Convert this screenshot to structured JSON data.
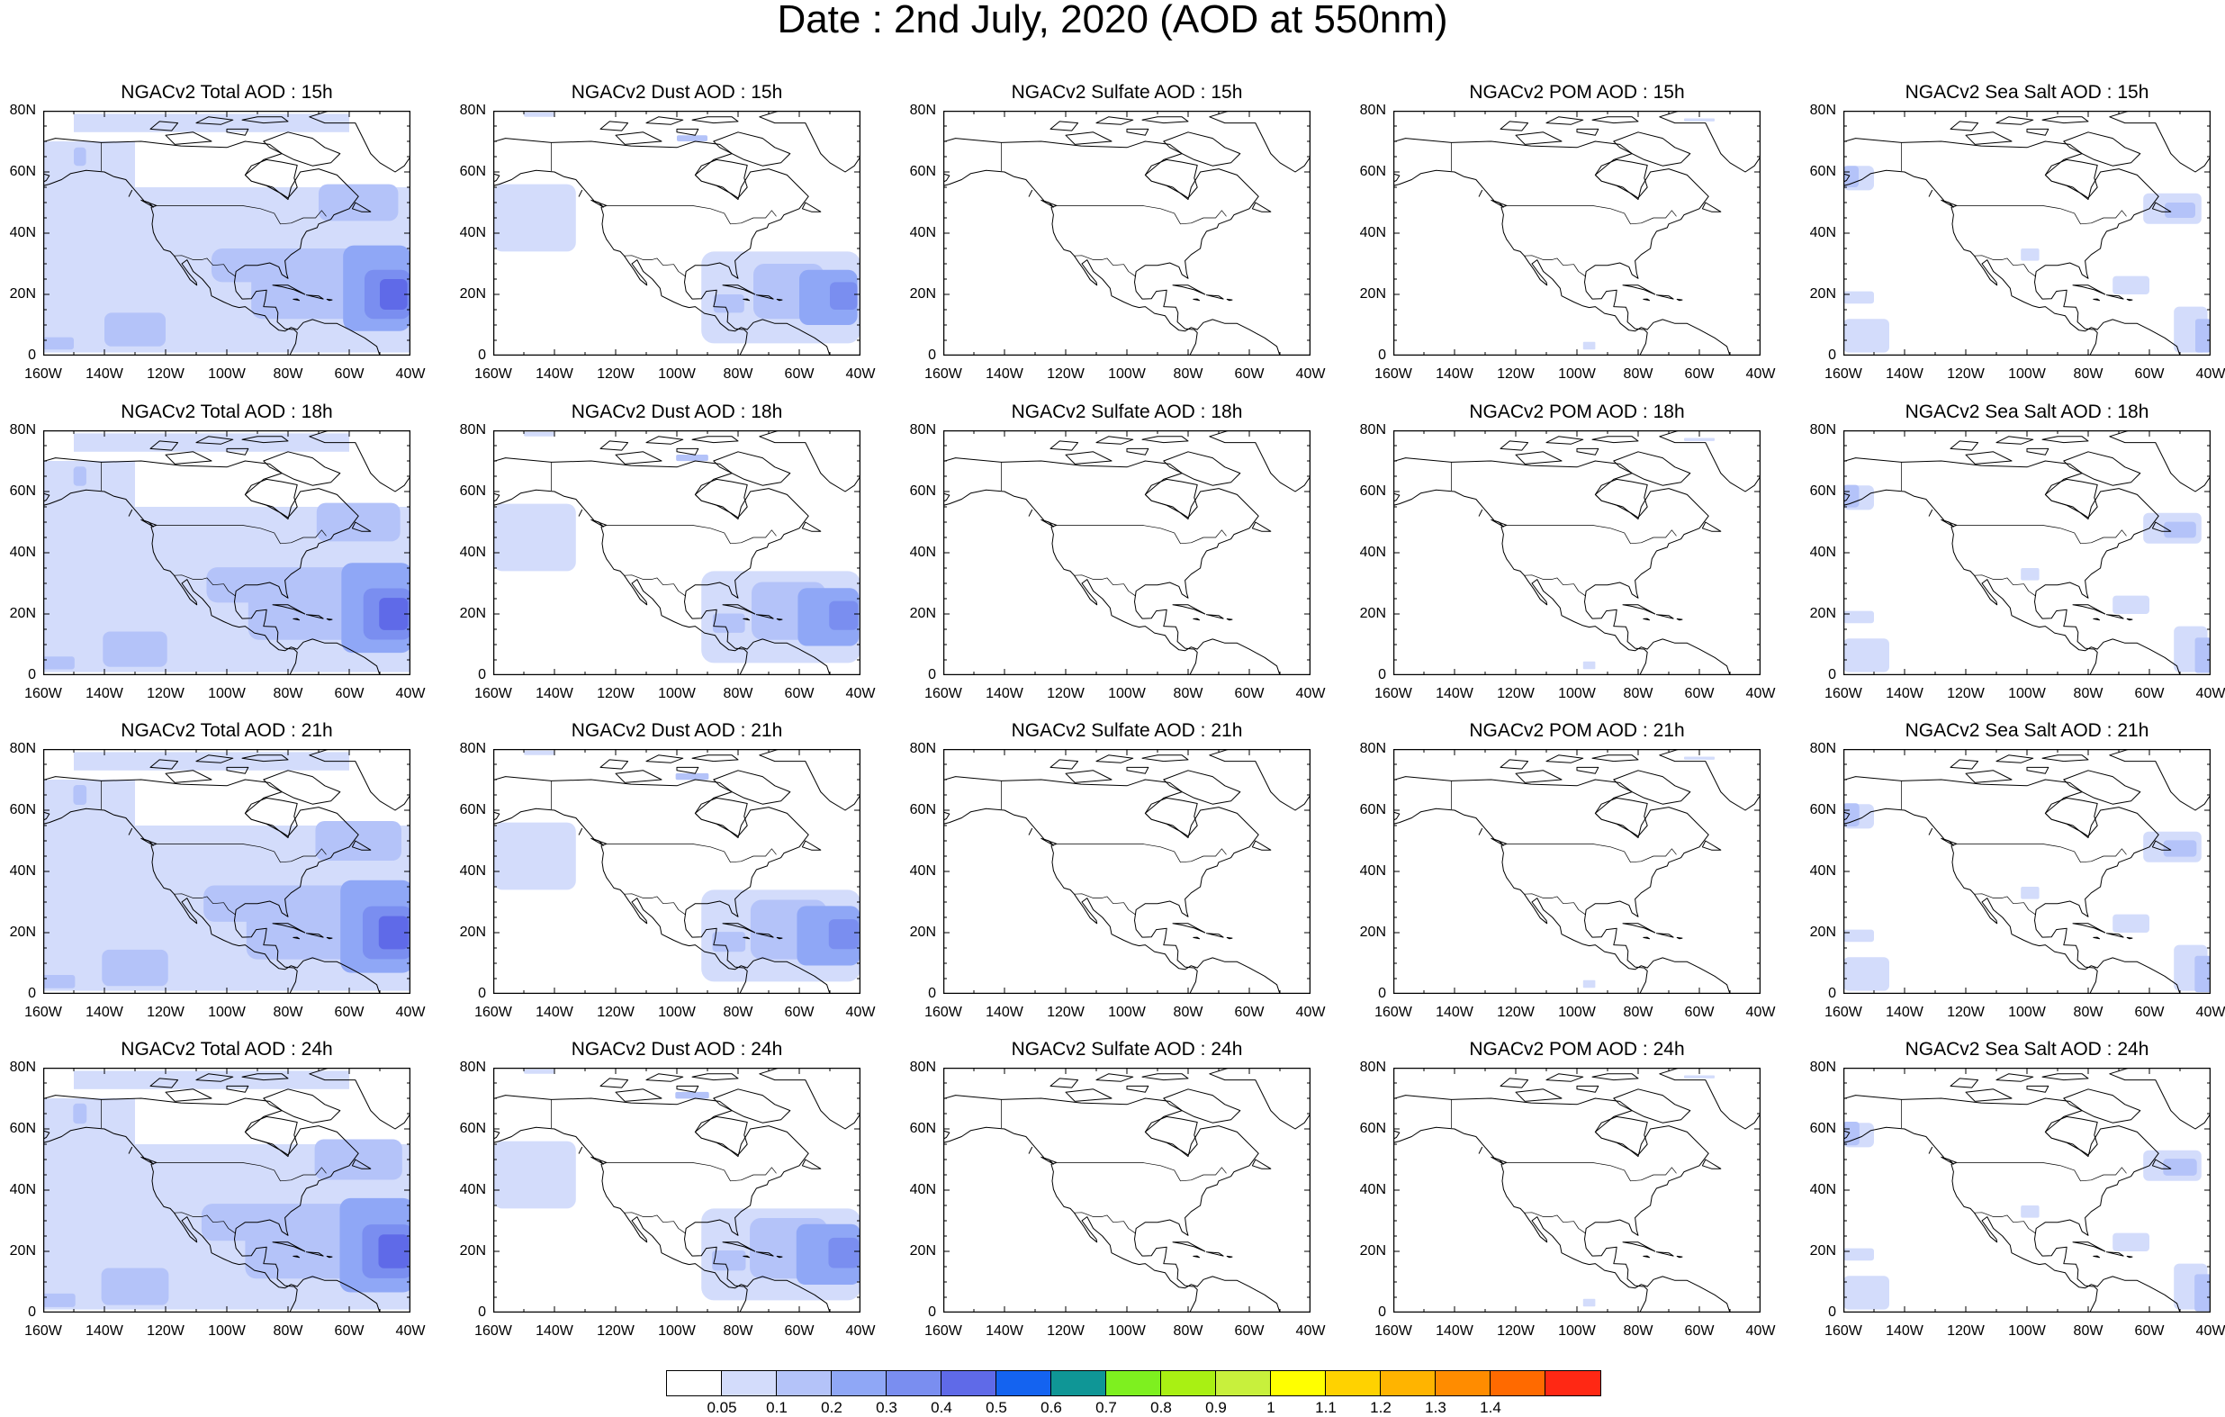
{
  "title": "Date : 2nd July, 2020 (AOD at 550nm)",
  "lon_ticks": [
    "160W",
    "140W",
    "120W",
    "100W",
    "80W",
    "60W",
    "40W"
  ],
  "lat_ticks": [
    "80N",
    "60N",
    "40N",
    "20N",
    "0"
  ],
  "rows": [
    {
      "time": "15h",
      "panels": [
        {
          "title": "NGACv2 Total AOD : 15h",
          "species": "total"
        },
        {
          "title": "NGACv2 Dust AOD : 15h",
          "species": "dust"
        },
        {
          "title": "NGACv2 Sulfate AOD : 15h",
          "species": "sulfate"
        },
        {
          "title": "NGACv2 POM AOD : 15h",
          "species": "pom"
        },
        {
          "title": "NGACv2 Sea Salt AOD : 15h",
          "species": "seasalt"
        }
      ]
    },
    {
      "time": "18h",
      "panels": [
        {
          "title": "NGACv2 Total AOD : 18h",
          "species": "total"
        },
        {
          "title": "NGACv2 Dust AOD : 18h",
          "species": "dust"
        },
        {
          "title": "NGACv2 Sulfate AOD : 18h",
          "species": "sulfate"
        },
        {
          "title": "NGACv2 POM AOD : 18h",
          "species": "pom"
        },
        {
          "title": "NGACv2 Sea Salt AOD : 18h",
          "species": "seasalt"
        }
      ]
    },
    {
      "time": "21h",
      "panels": [
        {
          "title": "NGACv2 Total AOD : 21h",
          "species": "total"
        },
        {
          "title": "NGACv2 Dust AOD : 21h",
          "species": "dust"
        },
        {
          "title": "NGACv2 Sulfate AOD : 21h",
          "species": "sulfate"
        },
        {
          "title": "NGACv2 POM AOD : 21h",
          "species": "pom"
        },
        {
          "title": "NGACv2 Sea Salt AOD : 21h",
          "species": "seasalt"
        }
      ]
    },
    {
      "time": "24h",
      "panels": [
        {
          "title": "NGACv2 Total AOD : 24h",
          "species": "total"
        },
        {
          "title": "NGACv2 Dust AOD : 24h",
          "species": "dust"
        },
        {
          "title": "NGACv2 Sulfate AOD : 24h",
          "species": "sulfate"
        },
        {
          "title": "NGACv2 POM AOD : 24h",
          "species": "pom"
        },
        {
          "title": "NGACv2 Sea Salt  AOD : 24h",
          "species": "seasalt"
        }
      ]
    }
  ],
  "colorbar": {
    "colors": [
      "#ffffff",
      "#d3dcfb",
      "#b4c3f9",
      "#8fa7f6",
      "#7a8ef0",
      "#5f6ae8",
      "#1463f0",
      "#0f9696",
      "#7ef01f",
      "#a9f013",
      "#c8f03c",
      "#ffff00",
      "#ffd200",
      "#ffb400",
      "#ff8c00",
      "#ff6a00",
      "#ff2814"
    ],
    "labels": [
      "0.05",
      "0.1",
      "0.2",
      "0.3",
      "0.4",
      "0.5",
      "0.6",
      "0.7",
      "0.8",
      "0.9",
      "1",
      "1.1",
      "1.2",
      "1.3",
      "1.4"
    ]
  },
  "aod_colors": {
    "low": "#d3dcfb",
    "mid": "#b4c3f9",
    "high": "#8fa7f6",
    "peak": "#7a8ef0",
    "max": "#5f6ae8"
  }
}
